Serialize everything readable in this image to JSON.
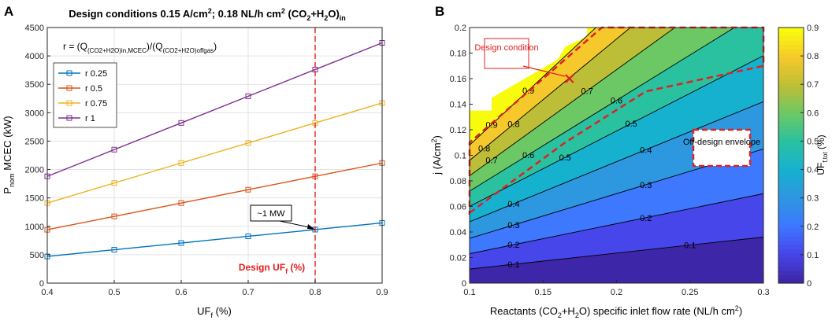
{
  "chart_data": [
    {
      "panel": "A",
      "type": "line",
      "title_parts": {
        "pre": "Design conditions 0.15 A/cm",
        "sup1": "2",
        "mid": "; 0.18 NL/h cm",
        "sup2": "2",
        "post": " (CO",
        "sub1": "2",
        "post2": "+H",
        "sub2": "2",
        "post3": "O)",
        "sub3": "in"
      },
      "ratio_note": {
        "pre": "r = (Q",
        "sub1": "(CO2+H2O)in,MCEC",
        "mid": ")/(Q",
        "sub2": "(CO2+H2O)offgas",
        "post": ")"
      },
      "xlabel": {
        "main": "UF",
        "sub": "f",
        "post": " (%)"
      },
      "ylabel": {
        "main": "P",
        "sub": "nom",
        "post": " MCEC (kW)"
      },
      "xlim": [
        0.4,
        0.9
      ],
      "ylim": [
        0,
        4500
      ],
      "xticks": [
        0.4,
        0.5,
        0.6,
        0.7,
        0.8,
        0.9
      ],
      "yticks": [
        0,
        500,
        1000,
        1500,
        2000,
        2500,
        3000,
        3500,
        4000,
        4500
      ],
      "x": [
        0.4,
        0.5,
        0.6,
        0.7,
        0.8,
        0.9
      ],
      "series": [
        {
          "name": "r 0.25",
          "color": "#0072BD",
          "values": [
            470,
            588,
            706,
            824,
            942,
            1060
          ]
        },
        {
          "name": "r 0.5",
          "color": "#D95319",
          "values": [
            940,
            1175,
            1410,
            1645,
            1880,
            2115
          ]
        },
        {
          "name": "r 0.75",
          "color": "#EDB120",
          "values": [
            1410,
            1762,
            2115,
            2467,
            2820,
            3172
          ]
        },
        {
          "name": "r 1",
          "color": "#7E2F8E",
          "values": [
            1880,
            2350,
            2820,
            3290,
            3760,
            4230
          ]
        }
      ],
      "design_line": {
        "x": 0.8,
        "color": "#E02020",
        "label_main": "Design UF",
        "label_sub": "f",
        "label_post": " (%)"
      },
      "annotation": {
        "text": "~1 MW",
        "point": [
          0.8,
          942
        ]
      },
      "grid": true
    },
    {
      "panel": "B",
      "type": "contour",
      "xlabel": {
        "pre": "Reactants (CO",
        "sub1": "2",
        "mid": "+H",
        "sub2": "2",
        "post": "O) specific inlet flow rate (NL/h cm",
        "sup": "2",
        "post2": ")"
      },
      "ylabel": {
        "pre": "j (A/cm",
        "sup": "2",
        "post": ")"
      },
      "colorbar_label": {
        "main": "UF",
        "sub": "f,tot",
        "post": " (%)"
      },
      "xlim": [
        0.1,
        0.3
      ],
      "ylim": [
        0,
        0.2
      ],
      "xticks": [
        0.1,
        0.15,
        0.2,
        0.25,
        0.3
      ],
      "yticks": [
        0,
        0.02,
        0.04,
        0.06,
        0.08,
        0.1,
        0.12,
        0.14,
        0.16,
        0.18,
        0.2
      ],
      "colorbar_ticks": [
        0,
        0.1,
        0.2,
        0.3,
        0.4,
        0.5,
        0.6,
        0.7,
        0.8,
        0.9
      ],
      "levels": [
        0.1,
        0.2,
        0.3,
        0.4,
        0.5,
        0.6,
        0.7,
        0.8,
        0.9
      ],
      "level_labels": [
        "0.1",
        "0.2",
        "0.3",
        "0.4",
        "0.5",
        "0.6",
        "0.7",
        "0.8",
        "0.9"
      ],
      "colormap": [
        "#3E26A8",
        "#4746EB",
        "#3D78FF",
        "#2D97E0",
        "#17B1D0",
        "#29C1A0",
        "#6CC865",
        "#BDBE37",
        "#F5C82B",
        "#F9FB0E"
      ],
      "design_point": {
        "x": 0.168,
        "y": 0.16,
        "label": "Design condition"
      },
      "envelope_label": "Off-design envelope",
      "envelope": [
        [
          0.1,
          0.055
        ],
        [
          0.165,
          0.11
        ],
        [
          0.22,
          0.15
        ],
        [
          0.3,
          0.17
        ],
        [
          0.3,
          0.2
        ],
        [
          0.19,
          0.2
        ],
        [
          0.1,
          0.11
        ]
      ]
    }
  ],
  "panel_labels": {
    "a": "A",
    "b": "B"
  }
}
